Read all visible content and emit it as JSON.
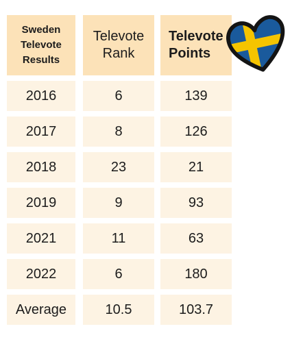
{
  "table": {
    "headers": {
      "title": "Sweden Televote Results",
      "rank": "Televote Rank",
      "points": "Televote Points"
    },
    "rows": [
      {
        "year": "2016",
        "rank": "6",
        "points": "139"
      },
      {
        "year": "2017",
        "rank": "8",
        "points": "126"
      },
      {
        "year": "2018",
        "rank": "23",
        "points": "21"
      },
      {
        "year": "2019",
        "rank": "9",
        "points": "93"
      },
      {
        "year": "2021",
        "rank": "11",
        "points": "63"
      },
      {
        "year": "2022",
        "rank": "6",
        "points": "180"
      },
      {
        "year": "Average",
        "rank": "10.5",
        "points": "103.7"
      }
    ]
  },
  "logo": {
    "icon": "sweden-flag-heart-icon",
    "colors": {
      "blue": "#1a5a9c",
      "yellow": "#f5c400",
      "outline": "#141414"
    }
  },
  "colors": {
    "header_bg": "#fce2b8",
    "row_bg": "#fdf3e3"
  }
}
